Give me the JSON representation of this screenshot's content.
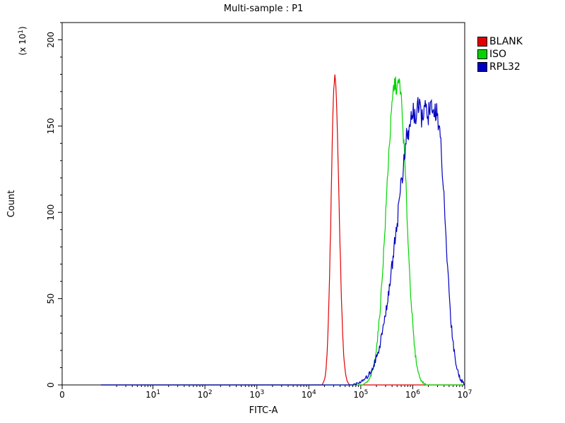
{
  "chart_data": {
    "type": "line",
    "chart_kind": "flow-cytometry-histogram",
    "title": "Multi-sample : P1",
    "xlabel": "FITC-A",
    "ylabel": "Count",
    "y_unit_prefix": "(x 10",
    "y_unit_exp": "1",
    "y_unit_suffix": ")",
    "x_scale": "log",
    "x_decades": 7,
    "x_zero_label": "0",
    "x_tick_exponents": [
      1,
      2,
      3,
      4,
      5,
      6,
      7
    ],
    "ylim": [
      0,
      210
    ],
    "y_major_ticks": [
      0,
      50,
      100,
      150,
      200
    ],
    "y_minor_step": 10,
    "grid": false,
    "legend_position": "top-right-outside",
    "axis_color": "#000000",
    "series": [
      {
        "name": "BLANK",
        "color": "#e00000",
        "peak_x": 32000,
        "peak_log": 4.5,
        "peak_count": 178,
        "sigma_left": 0.07,
        "sigma_right": 0.08,
        "flat_top": 0,
        "jitter": 3
      },
      {
        "name": "ISO",
        "color": "#00d400",
        "peak_x": 500000,
        "peak_log": 5.7,
        "peak_count": 174,
        "sigma_left": 0.18,
        "sigma_right": 0.15,
        "flat_top": 0.03,
        "jitter": 5
      },
      {
        "name": "RPL32",
        "color": "#0000c0",
        "peak_x": 1800000,
        "peak_log": 6.25,
        "peak_count": 158,
        "sigma_left": 0.35,
        "sigma_right": 0.17,
        "flat_top": 0.2,
        "jitter": 7
      }
    ]
  }
}
